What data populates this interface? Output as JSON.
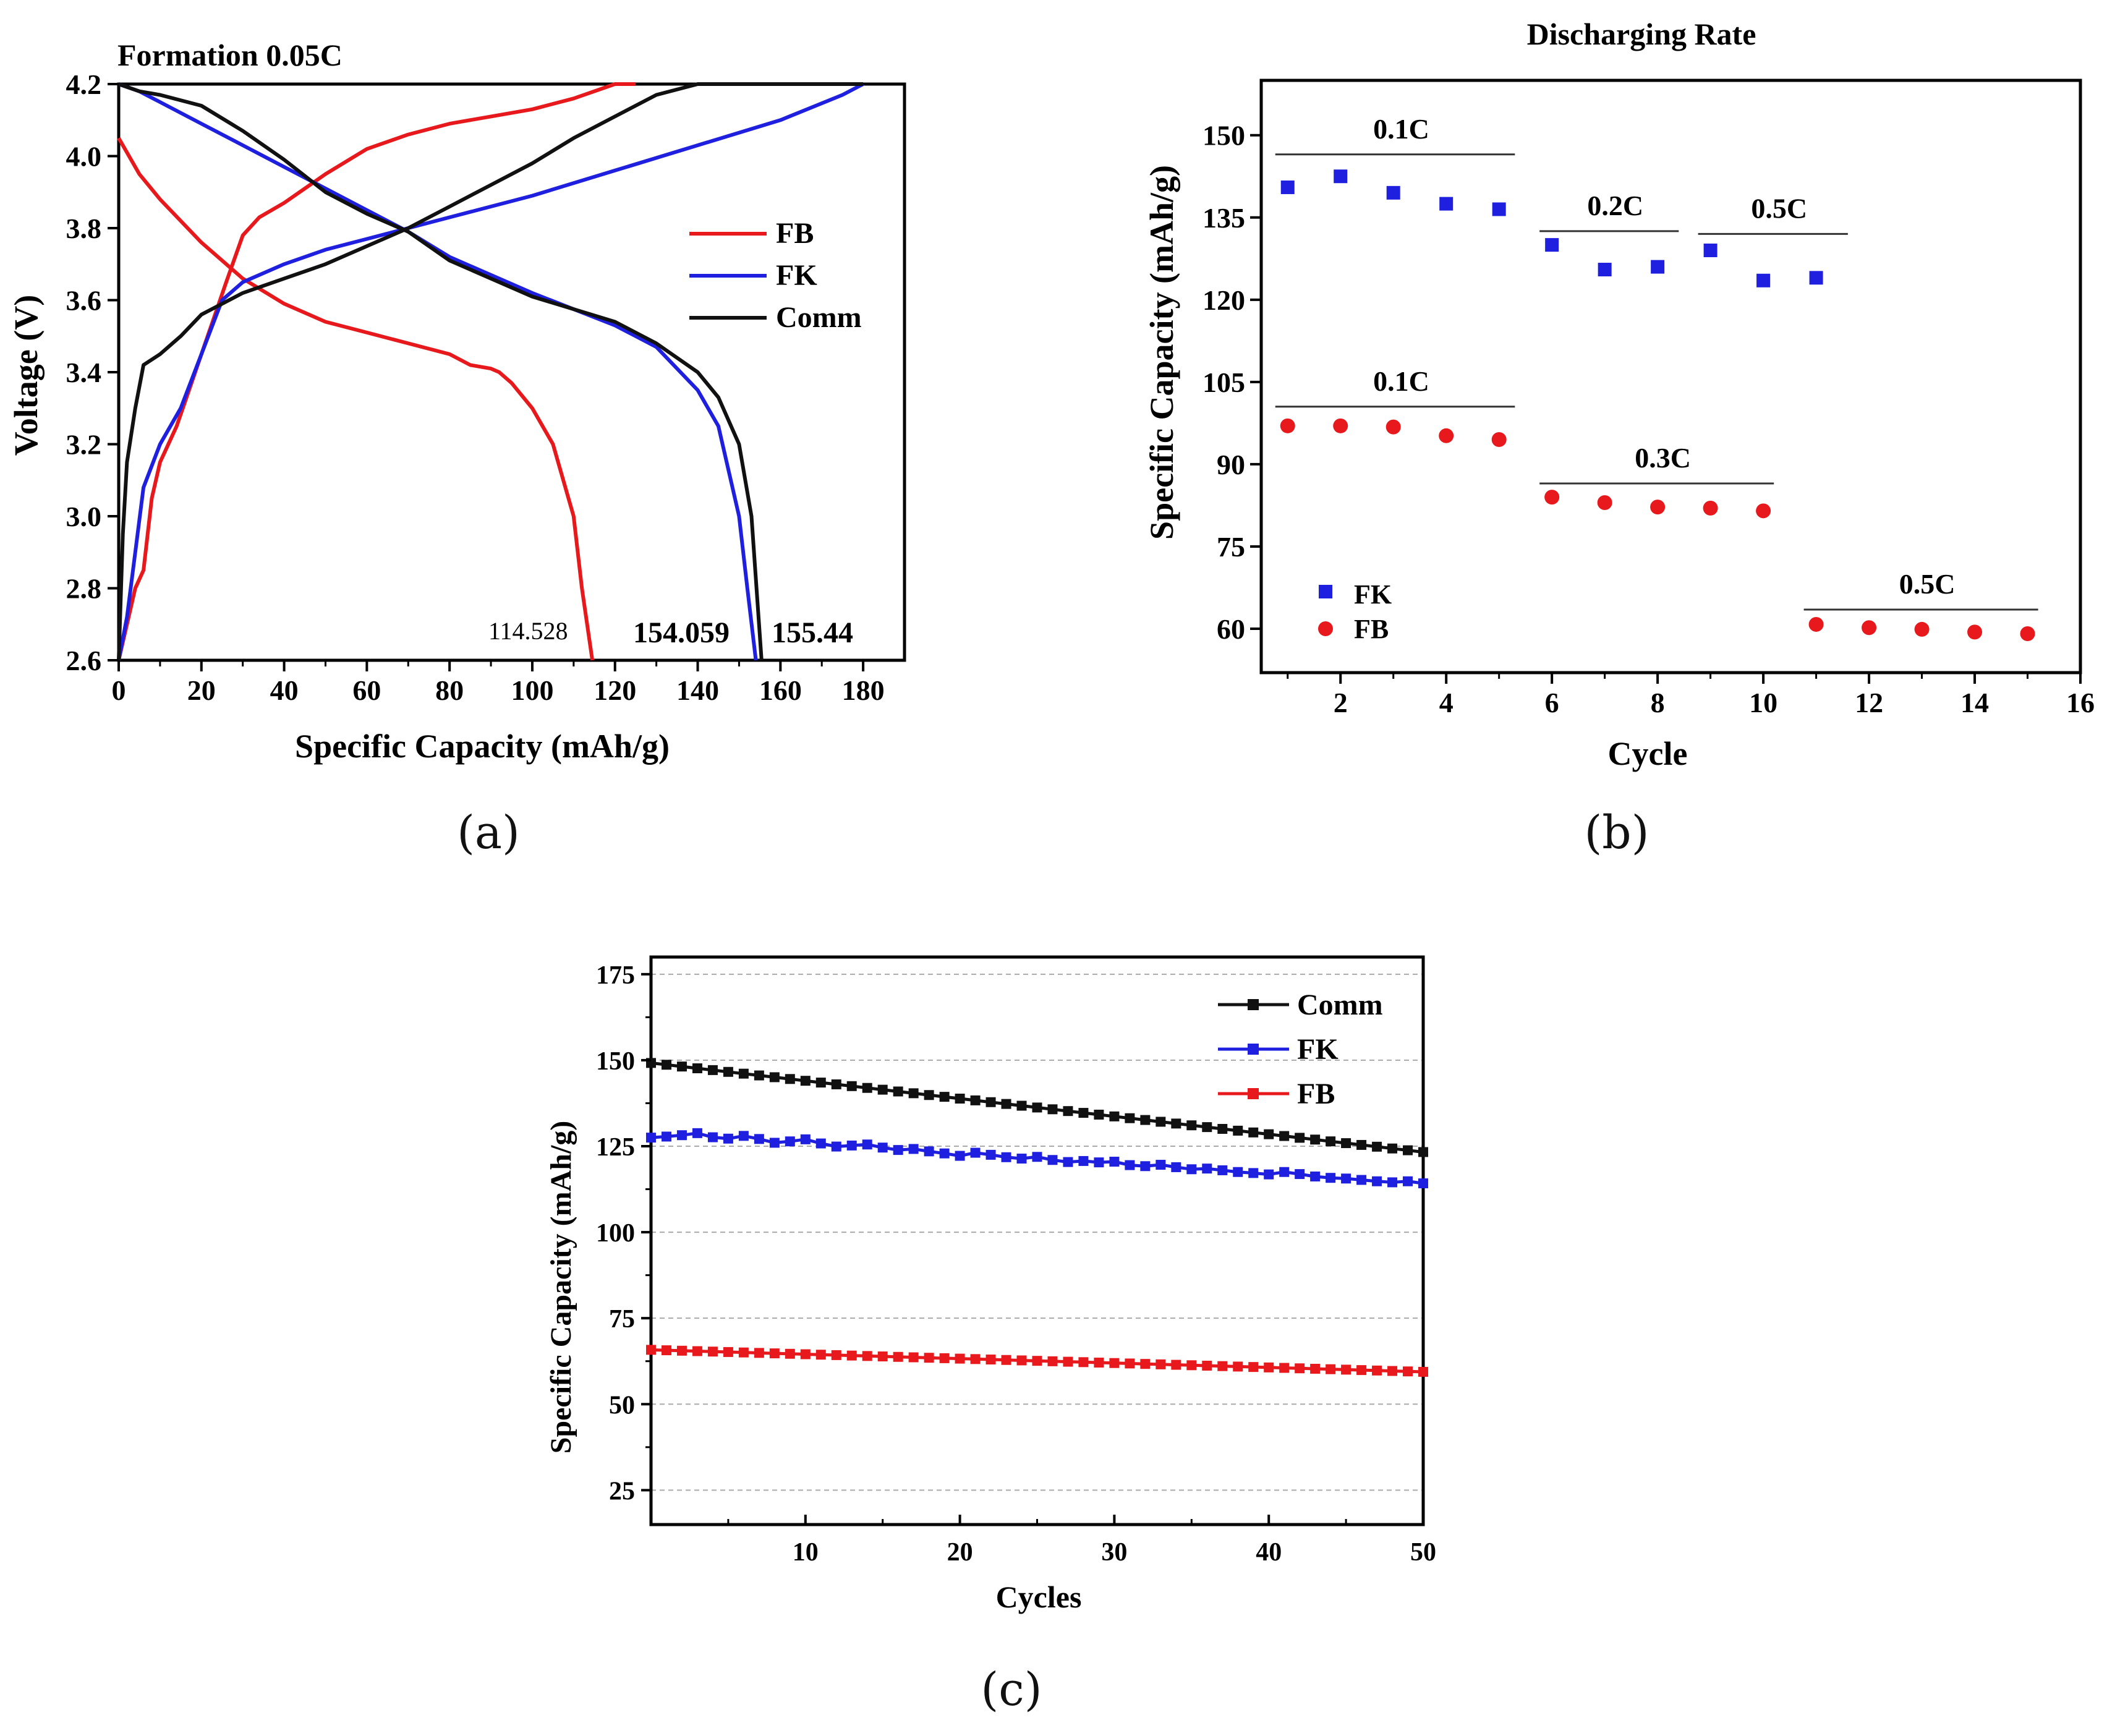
{
  "chart_data": [
    {
      "id": "a",
      "type": "line",
      "panel_label": "(a)",
      "title": "Formation 0.05C",
      "xlabel": "Specific Capacity (mAh/g)",
      "ylabel": "Voltage (V)",
      "xlim": [
        0,
        190
      ],
      "ylim": [
        2.6,
        4.2
      ],
      "xticks": [
        0,
        20,
        40,
        60,
        80,
        100,
        120,
        140,
        160,
        180
      ],
      "yticks": [
        "2.6",
        "2.8",
        "3.0",
        "3.2",
        "3.4",
        "3.6",
        "3.8",
        "4.0",
        "4.2"
      ],
      "annotations": [
        "114.528",
        "154.059",
        "155.44"
      ],
      "legend": [
        "FB",
        "FK",
        "Comm"
      ],
      "series": [
        {
          "name": "FB charge",
          "color": "#e8191c",
          "x": [
            0,
            4,
            6,
            8,
            10,
            14,
            20,
            26,
            30,
            34,
            40,
            50,
            60,
            70,
            80,
            90,
            100,
            110,
            120,
            125
          ],
          "y": [
            2.6,
            2.8,
            2.85,
            3.05,
            3.15,
            3.25,
            3.45,
            3.65,
            3.78,
            3.83,
            3.87,
            3.95,
            4.02,
            4.06,
            4.09,
            4.11,
            4.13,
            4.16,
            4.2,
            4.2
          ]
        },
        {
          "name": "FB discharge",
          "color": "#e8191c",
          "x": [
            0,
            5,
            10,
            20,
            30,
            40,
            50,
            60,
            70,
            80,
            85,
            90,
            92,
            95,
            100,
            105,
            110,
            112,
            114.528
          ],
          "y": [
            4.05,
            3.95,
            3.88,
            3.76,
            3.66,
            3.59,
            3.54,
            3.51,
            3.48,
            3.45,
            3.42,
            3.41,
            3.4,
            3.37,
            3.3,
            3.2,
            3.0,
            2.8,
            2.6
          ]
        },
        {
          "name": "FK charge",
          "color": "#1f1fe0",
          "x": [
            0,
            2,
            4,
            6,
            10,
            15,
            20,
            25,
            30,
            40,
            50,
            60,
            70,
            80,
            100,
            120,
            140,
            160,
            175,
            180
          ],
          "y": [
            2.6,
            2.72,
            2.9,
            3.08,
            3.2,
            3.3,
            3.45,
            3.6,
            3.65,
            3.7,
            3.74,
            3.77,
            3.8,
            3.83,
            3.89,
            3.96,
            4.03,
            4.1,
            4.17,
            4.2
          ]
        },
        {
          "name": "FK discharge",
          "color": "#1f1fe0",
          "x": [
            0,
            5,
            10,
            20,
            30,
            40,
            50,
            60,
            70,
            80,
            100,
            120,
            130,
            140,
            145,
            150,
            152,
            154.059
          ],
          "y": [
            4.2,
            4.18,
            4.15,
            4.09,
            4.03,
            3.97,
            3.91,
            3.85,
            3.79,
            3.72,
            3.62,
            3.53,
            3.47,
            3.35,
            3.25,
            3.0,
            2.8,
            2.6
          ]
        },
        {
          "name": "Comm charge",
          "color": "#111111",
          "x": [
            0,
            1,
            2,
            4,
            6,
            10,
            15,
            20,
            30,
            40,
            50,
            60,
            70,
            80,
            90,
            100,
            110,
            120,
            130,
            140,
            180
          ],
          "y": [
            2.6,
            2.95,
            3.15,
            3.3,
            3.42,
            3.45,
            3.5,
            3.56,
            3.62,
            3.66,
            3.7,
            3.75,
            3.8,
            3.86,
            3.92,
            3.98,
            4.05,
            4.11,
            4.17,
            4.2,
            4.2
          ]
        },
        {
          "name": "Comm discharge",
          "color": "#111111",
          "x": [
            0,
            5,
            10,
            20,
            30,
            40,
            50,
            60,
            70,
            80,
            100,
            120,
            130,
            140,
            145,
            150,
            153,
            155.44
          ],
          "y": [
            4.2,
            4.18,
            4.17,
            4.14,
            4.07,
            3.99,
            3.9,
            3.84,
            3.79,
            3.71,
            3.61,
            3.54,
            3.48,
            3.4,
            3.33,
            3.2,
            3.0,
            2.6
          ]
        }
      ]
    },
    {
      "id": "b",
      "type": "scatter",
      "panel_label": "(b)",
      "title": "Discharging Rate",
      "xlabel": "Cycle",
      "ylabel": "Specific Capacity (mAh/g)",
      "xlim": [
        0.5,
        16
      ],
      "ylim": [
        52,
        160
      ],
      "xticks": [
        2,
        4,
        6,
        8,
        10,
        12,
        14,
        16
      ],
      "yticks": [
        60,
        75,
        90,
        105,
        120,
        135,
        150
      ],
      "series": [
        {
          "name": "FK",
          "marker": "square",
          "color": "#1f1fe0",
          "x": [
            1,
            2,
            3,
            4,
            5,
            6,
            7,
            8,
            9,
            10,
            11
          ],
          "y": [
            140.5,
            142.5,
            139.5,
            137.5,
            136.5,
            130,
            125.5,
            126,
            129,
            123.5,
            124
          ]
        },
        {
          "name": "FB",
          "marker": "circle",
          "color": "#e8191c",
          "x": [
            1,
            2,
            3,
            4,
            5,
            6,
            7,
            8,
            9,
            10,
            11,
            12,
            13,
            14,
            15
          ],
          "y": [
            97,
            97,
            96.8,
            95.2,
            94.5,
            84,
            83,
            82.2,
            82,
            81.5,
            60.8,
            60.2,
            59.9,
            59.4,
            59.1
          ]
        }
      ],
      "rate_labels": [
        {
          "text": "0.1C",
          "x_start": 1,
          "x_end": 5.3,
          "y": 146.5
        },
        {
          "text": "0.2C",
          "x_start": 6,
          "x_end": 8.4,
          "y": 132.5
        },
        {
          "text": "0.5C",
          "x_start": 9,
          "x_end": 11.6,
          "y": 132
        },
        {
          "text": "0.1C",
          "x_start": 1,
          "x_end": 5.3,
          "y": 100.5
        },
        {
          "text": "0.3C",
          "x_start": 6,
          "x_end": 10.2,
          "y": 86.5
        },
        {
          "text": "0.5C",
          "x_start": 11,
          "x_end": 15.2,
          "y": 63.5
        }
      ],
      "legend": [
        "FK",
        "FB"
      ]
    },
    {
      "id": "c",
      "type": "line",
      "panel_label": "(c)",
      "xlabel": "Cycles",
      "ylabel": "Specific Capacity (mAh/g)",
      "xlim": [
        0,
        50
      ],
      "ylim": [
        15,
        180
      ],
      "xticks": [
        10,
        20,
        30,
        40,
        50
      ],
      "yticks": [
        25,
        50,
        75,
        100,
        125,
        150,
        175
      ],
      "grid": true,
      "legend": [
        "Comm",
        "FK",
        "FB"
      ],
      "series": [
        {
          "name": "Comm",
          "color": "#111111",
          "start": 149.2,
          "end": 123.3
        },
        {
          "name": "FK",
          "color": "#1f1fe0",
          "values": [
            127.5,
            127.8,
            128.2,
            128.8,
            127.6,
            127.2,
            128.0,
            127.1,
            126.0,
            126.4,
            127.0,
            125.8,
            124.9,
            125.2,
            125.5,
            124.6,
            123.9,
            124.2,
            123.5,
            122.9,
            122.2,
            123.1,
            122.5,
            121.8,
            121.4,
            121.9,
            121.0,
            120.4,
            120.7,
            120.3,
            120.5,
            119.5,
            119.2,
            119.6,
            118.9,
            118.3,
            118.5,
            118.0,
            117.5,
            117.2,
            116.8,
            117.5,
            116.9,
            116.2,
            115.8,
            115.6,
            115.2,
            114.8,
            114.5,
            114.8,
            114.2
          ]
        },
        {
          "name": "FB",
          "color": "#e8191c",
          "start": 65.8,
          "end": 59.4
        }
      ]
    }
  ]
}
